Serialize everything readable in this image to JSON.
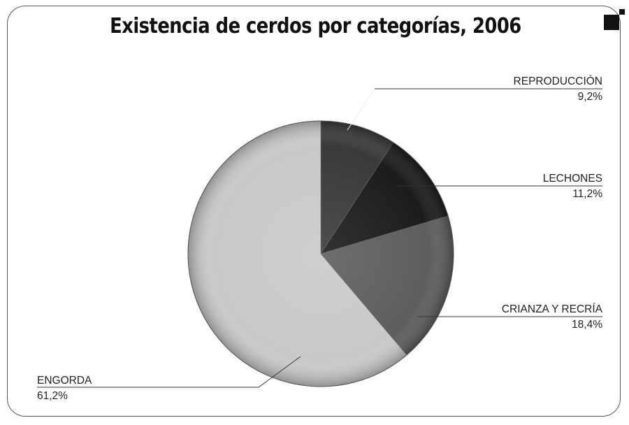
{
  "chart_data": {
    "type": "pie",
    "title": "Existencia de cerdos por categorías, 2006",
    "slices": [
      {
        "label": "REPRODUCCIÓN",
        "value": 9.2,
        "value_text": "9,2%",
        "color": "#3a3a3a"
      },
      {
        "label": "LECHONES",
        "value": 11.2,
        "value_text": "11,2%",
        "color": "#1c1c1c"
      },
      {
        "label": "CRIANZA Y RECRÍA",
        "value": 18.4,
        "value_text": "18,4%",
        "color": "#5e5e5e"
      },
      {
        "label": "ENGORDA",
        "value": 61.2,
        "value_text": "61,2%",
        "color": "#c9c9c9"
      }
    ],
    "start_angle": "12 o'clock",
    "direction": "clockwise",
    "legend": "none"
  },
  "colors": {
    "frame": "#555555",
    "text": "#222222"
  }
}
